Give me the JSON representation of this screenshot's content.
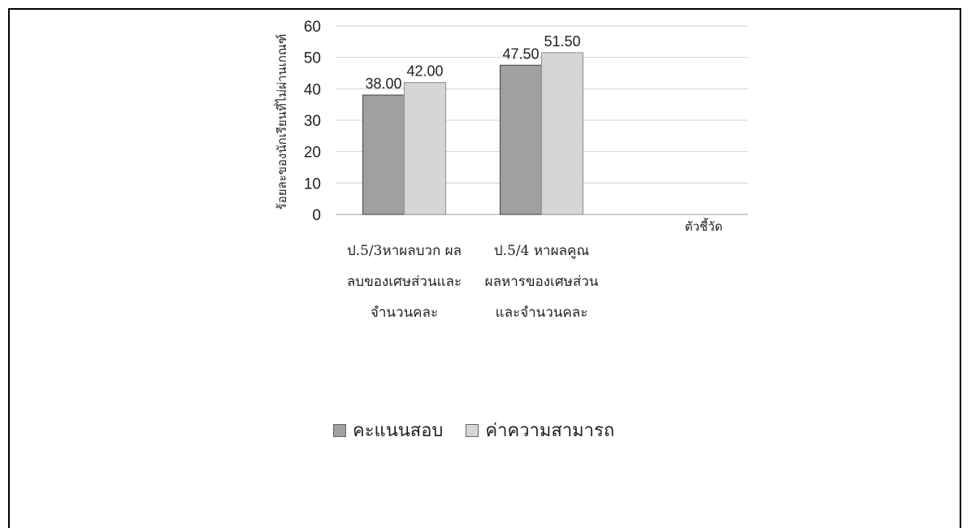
{
  "chart_data": {
    "type": "bar",
    "ylabel": "ร้อยละของนักเรียนที่ไม่ผ่านเกณฑ์",
    "xlabel": "ตัวชี้วัด",
    "ylim": [
      0,
      60
    ],
    "yticks": [
      "0",
      "10",
      "20",
      "30",
      "40",
      "50",
      "60"
    ],
    "grid": true,
    "legend_position": "bottom",
    "categories": [
      [
        "ป.5/3หาผลบวก ผล",
        "ลบของเศษส่วนและ",
        "จำนวนคละ"
      ],
      [
        "ป.5/4  หาผลคูณ",
        "ผลหารของเศษส่วน",
        "และจำนวนคละ"
      ],
      [
        ""
      ]
    ],
    "series": [
      {
        "name": "คะแนนสอบ",
        "values": [
          38.0,
          47.5,
          null
        ],
        "labels": [
          "38.00",
          "47.50",
          ""
        ],
        "color": "#a0a0a0"
      },
      {
        "name": "ค่าความสามารถ",
        "values": [
          42.0,
          51.5,
          null
        ],
        "labels": [
          "42.00",
          "51.50",
          ""
        ],
        "color": "#d6d6d6"
      }
    ]
  }
}
